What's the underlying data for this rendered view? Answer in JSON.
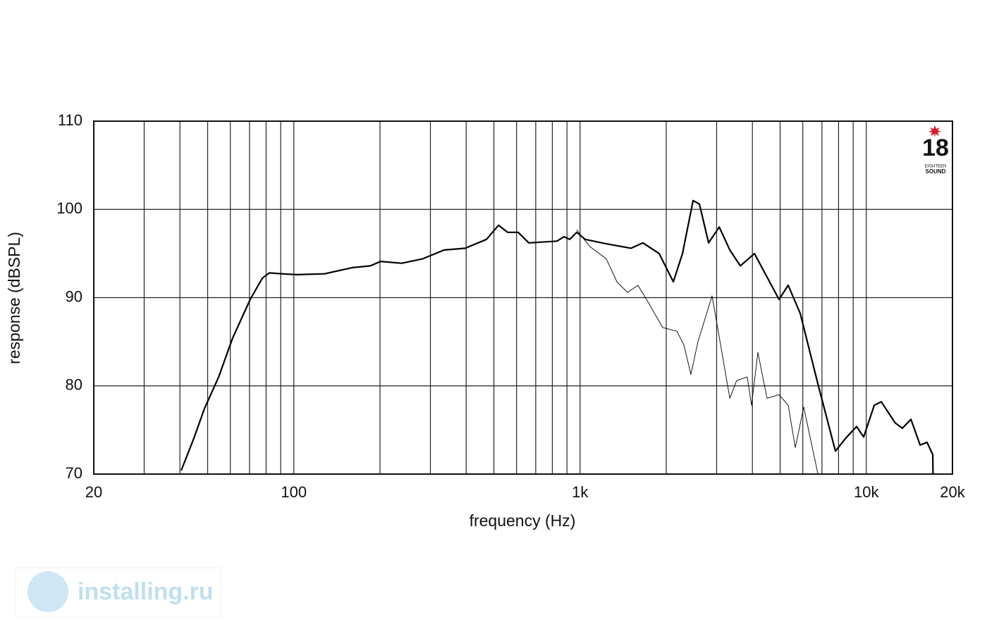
{
  "chart_data": {
    "type": "line",
    "xlabel": "frequency (Hz)",
    "ylabel": "response (dBSPL)",
    "xscale": "log",
    "grid": true,
    "xlim": [
      20,
      20000
    ],
    "ylim": [
      70,
      110
    ],
    "xticks": [
      20,
      100,
      {
        "value": 1000,
        "label": "1k"
      },
      {
        "value": 10000,
        "label": "10k"
      },
      {
        "value": 20000,
        "label": "20k"
      }
    ],
    "xgrid": [
      30,
      40,
      50,
      60,
      70,
      80,
      90,
      200,
      300,
      400,
      500,
      600,
      700,
      800,
      900,
      2000,
      3000,
      4000,
      5000,
      6000,
      7000,
      8000,
      9000
    ],
    "yticks": [
      70,
      80,
      90,
      100,
      110
    ],
    "series": [
      {
        "color": "#000000",
        "stroke_width": 2.2,
        "x": [
          40.4,
          44.8,
          48.7,
          54.6,
          61.1,
          70.4,
          77.6,
          82.1,
          91,
          102,
          128,
          160,
          185,
          201,
          238,
          282,
          335,
          397,
          471,
          519,
          558,
          608,
          662,
          830,
          879,
          920,
          973,
          1042,
          1235,
          1507,
          1659,
          1889,
          2118,
          2280,
          2482,
          2612,
          2813,
          3063,
          3335,
          3630,
          4065,
          4955,
          5335,
          5878,
          6777,
          7800,
          8494,
          9250,
          9790,
          10664,
          11280,
          12620,
          13370,
          14320,
          15420,
          16300,
          17070,
          17100
        ],
        "values": [
          70.4,
          74.1,
          77.4,
          81.0,
          85.4,
          89.8,
          92.2,
          92.8,
          92.7,
          92.6,
          92.7,
          93.4,
          93.6,
          94.1,
          93.9,
          94.4,
          95.4,
          95.6,
          96.6,
          98.2,
          97.4,
          97.4,
          96.2,
          96.4,
          96.9,
          96.6,
          97.4,
          96.6,
          96.1,
          95.6,
          96.2,
          95.0,
          91.8,
          95.0,
          101.0,
          100.6,
          96.2,
          98.0,
          95.4,
          93.6,
          95.0,
          89.8,
          91.4,
          88.2,
          80.2,
          72.6,
          74.1,
          75.4,
          74.2,
          77.8,
          78.2,
          75.8,
          75.2,
          76.2,
          73.3,
          73.6,
          72.2,
          70.0
        ]
      },
      {
        "color": "#000000",
        "stroke_width": 0.9,
        "x": [
          973,
          1080,
          1235,
          1345,
          1464,
          1593,
          1735,
          1945,
          2179,
          2307,
          2439,
          2582,
          2891,
          3098,
          3335,
          3525,
          3839,
          3973,
          4180,
          4500,
          4955,
          5335,
          5650,
          6045,
          6777
        ],
        "values": [
          97.7,
          95.8,
          94.4,
          91.8,
          90.6,
          91.4,
          89.4,
          86.6,
          86.2,
          84.6,
          81.3,
          85.0,
          90.2,
          84.6,
          78.6,
          80.6,
          81.0,
          77.8,
          83.8,
          78.6,
          79.0,
          77.8,
          73.0,
          77.6,
          70.0
        ]
      }
    ]
  },
  "logo": {
    "mark": "18",
    "line1": "EIGHTEEN",
    "line2": "SOUND"
  },
  "watermark": "installing.ru"
}
